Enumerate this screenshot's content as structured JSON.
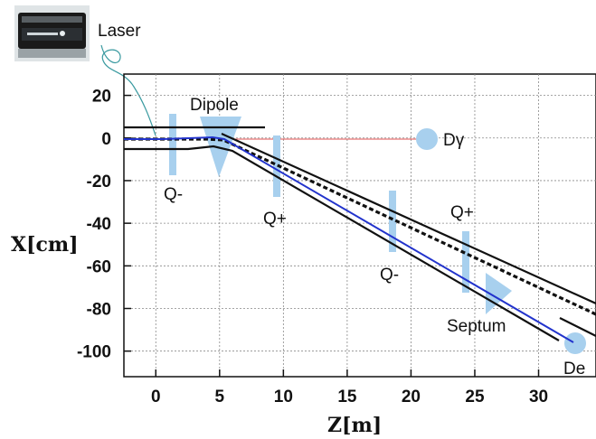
{
  "laser_label": "Laser",
  "axes": {
    "xlabel": "Z[m]",
    "ylabel": "X[cm]",
    "xlim": [
      -2.5,
      34.5
    ],
    "ylim": [
      -112,
      30
    ],
    "x_ticks": [
      0,
      5,
      10,
      15,
      20,
      25,
      30
    ],
    "y_ticks": [
      20,
      0,
      -20,
      -40,
      -60,
      -80,
      -100
    ],
    "grid": "dotted"
  },
  "labels": {
    "dipole": "Dipole",
    "q_minus_1": "Q-",
    "q_plus_1": "Q+",
    "q_minus_2": "Q-",
    "q_plus_2": "Q+",
    "septum": "Septum",
    "d_gamma": "Dγ",
    "d_e": "De"
  },
  "colors": {
    "beam": "#2233cc",
    "photon_line": "#e05050",
    "element": "#a8d0ee",
    "walls": "#000000",
    "laser_cable": "#3a9aa0"
  },
  "chart_data": {
    "type": "line",
    "xlabel": "Z[m]",
    "ylabel": "X[cm]",
    "xlim": [
      -2.5,
      34.5
    ],
    "ylim": [
      -112,
      30
    ],
    "grid": true,
    "series": [
      {
        "x": [
          -2.5,
          0,
          2,
          4,
          5,
          33
        ],
        "y": [
          0,
          0,
          0.5,
          1,
          0,
          -95
        ]
      },
      {
        "x": [
          -2.5,
          3.2,
          4.8,
          34.5
        ],
        "y": [
          0,
          0,
          0,
          0
        ]
      },
      {
        "x": [
          -2.5,
          3,
          4.5,
          34.5
        ],
        "y": [
          0,
          1,
          0,
          -86
        ]
      },
      {
        "x": [
          -2.5,
          8.5
        ],
        "y": [
          5,
          5
        ]
      },
      {
        "x": [
          -2.5,
          1.5,
          4,
          5.5,
          31.5
        ],
        "y": [
          -5,
          -5,
          -4,
          -6,
          -98
        ]
      },
      {
        "x": [
          4.5,
          34.5
        ],
        "y": [
          2,
          -79
        ]
      },
      {
        "x": [
          32,
          34.5
        ],
        "y": [
          -86,
          -92
        ]
      }
    ],
    "elements": [
      {
        "type": "quadrupole",
        "z": 1.0
      },
      {
        "type": "dipole",
        "z": 4.5
      },
      {
        "type": "quadrupole",
        "z": 9.2
      },
      {
        "type": "quadrupole",
        "z": 18.2
      },
      {
        "type": "quadrupole",
        "z": 24.3
      },
      {
        "type": "septum",
        "z": 26.5
      },
      {
        "type": "detector-gamma",
        "z": 21.0,
        "x": 0
      },
      {
        "type": "detector-e",
        "z": 33.0,
        "x": -95
      }
    ]
  }
}
